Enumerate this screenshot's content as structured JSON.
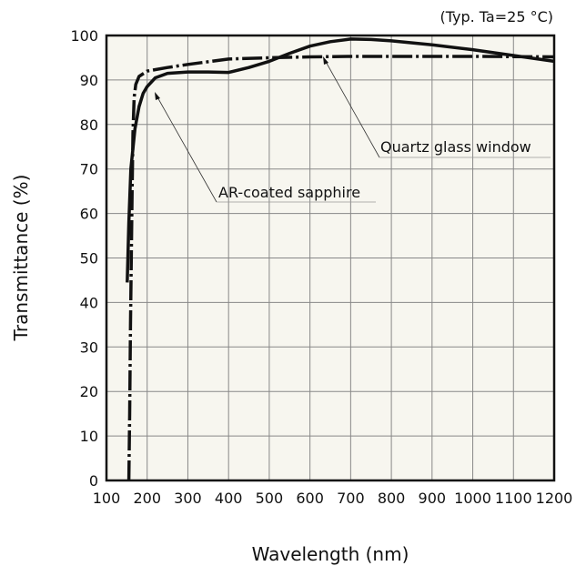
{
  "chart_data": {
    "type": "line",
    "title": "",
    "note": "(Typ. Ta=25 °C)",
    "xlabel": "Wavelength (nm)",
    "ylabel": "Transmittance (%)",
    "xlim": [
      100,
      1200
    ],
    "ylim": [
      0,
      100
    ],
    "xticks": [
      100,
      200,
      300,
      400,
      500,
      600,
      700,
      800,
      900,
      1000,
      1100,
      1200
    ],
    "yticks": [
      0,
      10,
      20,
      30,
      40,
      50,
      60,
      70,
      80,
      90,
      100
    ],
    "grid": true,
    "series": [
      {
        "name": "AR-coated sapphire",
        "style": "solid",
        "x": [
          151,
          155,
          160,
          170,
          180,
          190,
          200,
          220,
          250,
          300,
          350,
          400,
          450,
          500,
          550,
          600,
          650,
          700,
          750,
          800,
          900,
          1000,
          1100,
          1200
        ],
        "y": [
          44.5,
          58,
          70,
          79,
          84,
          87,
          88.5,
          90.5,
          91.5,
          91.8,
          91.8,
          91.7,
          92.8,
          94.2,
          96,
          97.6,
          98.6,
          99.2,
          99.1,
          98.8,
          97.9,
          96.8,
          95.5,
          94.2
        ]
      },
      {
        "name": "Quartz glass window",
        "style": "dashdot",
        "x": [
          155,
          157,
          159,
          161,
          163,
          165,
          168,
          172,
          180,
          200,
          250,
          300,
          400,
          500,
          600,
          700,
          800,
          1000,
          1200
        ],
        "y": [
          0,
          15,
          35,
          50,
          65,
          78,
          86,
          89,
          90.8,
          92,
          92.8,
          93.5,
          94.7,
          95,
          95.2,
          95.3,
          95.3,
          95.3,
          95.2
        ]
      }
    ],
    "annotations": [
      "AR-coated sapphire",
      "Quartz glass window"
    ]
  }
}
